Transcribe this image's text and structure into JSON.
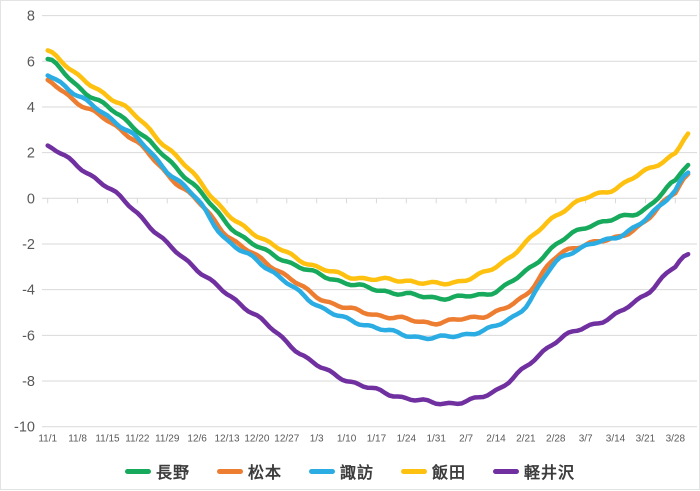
{
  "page": {
    "background": "#ffffff",
    "border_color": "#e3e3e3"
  },
  "style": {
    "grid_color": "#d9d9d9",
    "tick_color": "#d9d9d9",
    "axis_text_color": "#595959",
    "legend_text_color": "#3c3c3c"
  },
  "chart_data": {
    "type": "line",
    "title": "",
    "grid": "horizontal-only",
    "legend_position": "bottom-center",
    "ylim": [
      -10,
      8
    ],
    "y_ticks": [
      8,
      6,
      4,
      2,
      0,
      -2,
      -4,
      -6,
      -8,
      -10
    ],
    "x_tick_labels": [
      "11/1",
      "11/8",
      "11/15",
      "11/22",
      "11/29",
      "12/6",
      "12/13",
      "12/20",
      "12/27",
      "1/3",
      "1/10",
      "1/17",
      "1/24",
      "1/31",
      "2/7",
      "2/14",
      "2/21",
      "2/28",
      "3/7",
      "3/14",
      "3/21",
      "3/28"
    ],
    "x_points": [
      "11/1",
      "11/8",
      "11/15",
      "11/22",
      "11/29",
      "12/6",
      "12/13",
      "12/20",
      "12/27",
      "1/3",
      "1/10",
      "1/17",
      "1/24",
      "1/31",
      "2/7",
      "2/14",
      "2/21",
      "2/28",
      "3/7",
      "3/14",
      "3/21",
      "3/28",
      "3/31"
    ],
    "x_point_days": [
      0,
      7,
      14,
      21,
      28,
      35,
      42,
      49,
      56,
      63,
      70,
      77,
      84,
      91,
      98,
      105,
      112,
      119,
      126,
      133,
      140,
      147,
      150
    ],
    "series": [
      {
        "name": "長野",
        "slug": "nagano",
        "color": "#17a95c",
        "values": [
          6.1,
          4.9,
          4.0,
          3.0,
          1.7,
          0.45,
          -1.1,
          -2.1,
          -2.75,
          -3.3,
          -3.7,
          -4.0,
          -4.2,
          -4.35,
          -4.3,
          -4.05,
          -3.2,
          -2.05,
          -1.25,
          -0.9,
          -0.45,
          0.75,
          1.5
        ]
      },
      {
        "name": "松本",
        "slug": "matsumoto",
        "color": "#ed7d31",
        "values": [
          5.1,
          4.2,
          3.4,
          2.45,
          1.05,
          -0.1,
          -1.6,
          -2.55,
          -3.4,
          -4.3,
          -4.8,
          -5.1,
          -5.3,
          -5.45,
          -5.25,
          -5.0,
          -4.2,
          -2.6,
          -2.0,
          -1.75,
          -1.0,
          0.3,
          1.05
        ]
      },
      {
        "name": "諏訪",
        "slug": "suwa",
        "color": "#2bace2",
        "values": [
          5.4,
          4.5,
          3.6,
          2.6,
          1.2,
          -0.05,
          -1.85,
          -2.7,
          -3.7,
          -4.65,
          -5.3,
          -5.65,
          -6.0,
          -6.1,
          -5.95,
          -5.6,
          -4.7,
          -2.8,
          -2.1,
          -1.7,
          -0.95,
          0.35,
          1.15
        ]
      },
      {
        "name": "飯田",
        "slug": "iida",
        "color": "#fec110",
        "values": [
          6.5,
          5.35,
          4.5,
          3.55,
          2.2,
          0.9,
          -0.7,
          -1.6,
          -2.4,
          -3.0,
          -3.4,
          -3.55,
          -3.6,
          -3.75,
          -3.55,
          -3.0,
          -1.95,
          -0.75,
          0.0,
          0.45,
          1.2,
          1.95,
          2.8
        ]
      },
      {
        "name": "軽井沢",
        "slug": "karuizawa",
        "color": "#7030a0",
        "values": [
          2.3,
          1.4,
          0.5,
          -0.65,
          -2.0,
          -3.1,
          -4.2,
          -5.15,
          -6.3,
          -7.3,
          -7.95,
          -8.4,
          -8.75,
          -8.95,
          -8.9,
          -8.4,
          -7.4,
          -6.25,
          -5.65,
          -5.1,
          -4.2,
          -3.0,
          -2.5
        ]
      }
    ]
  }
}
